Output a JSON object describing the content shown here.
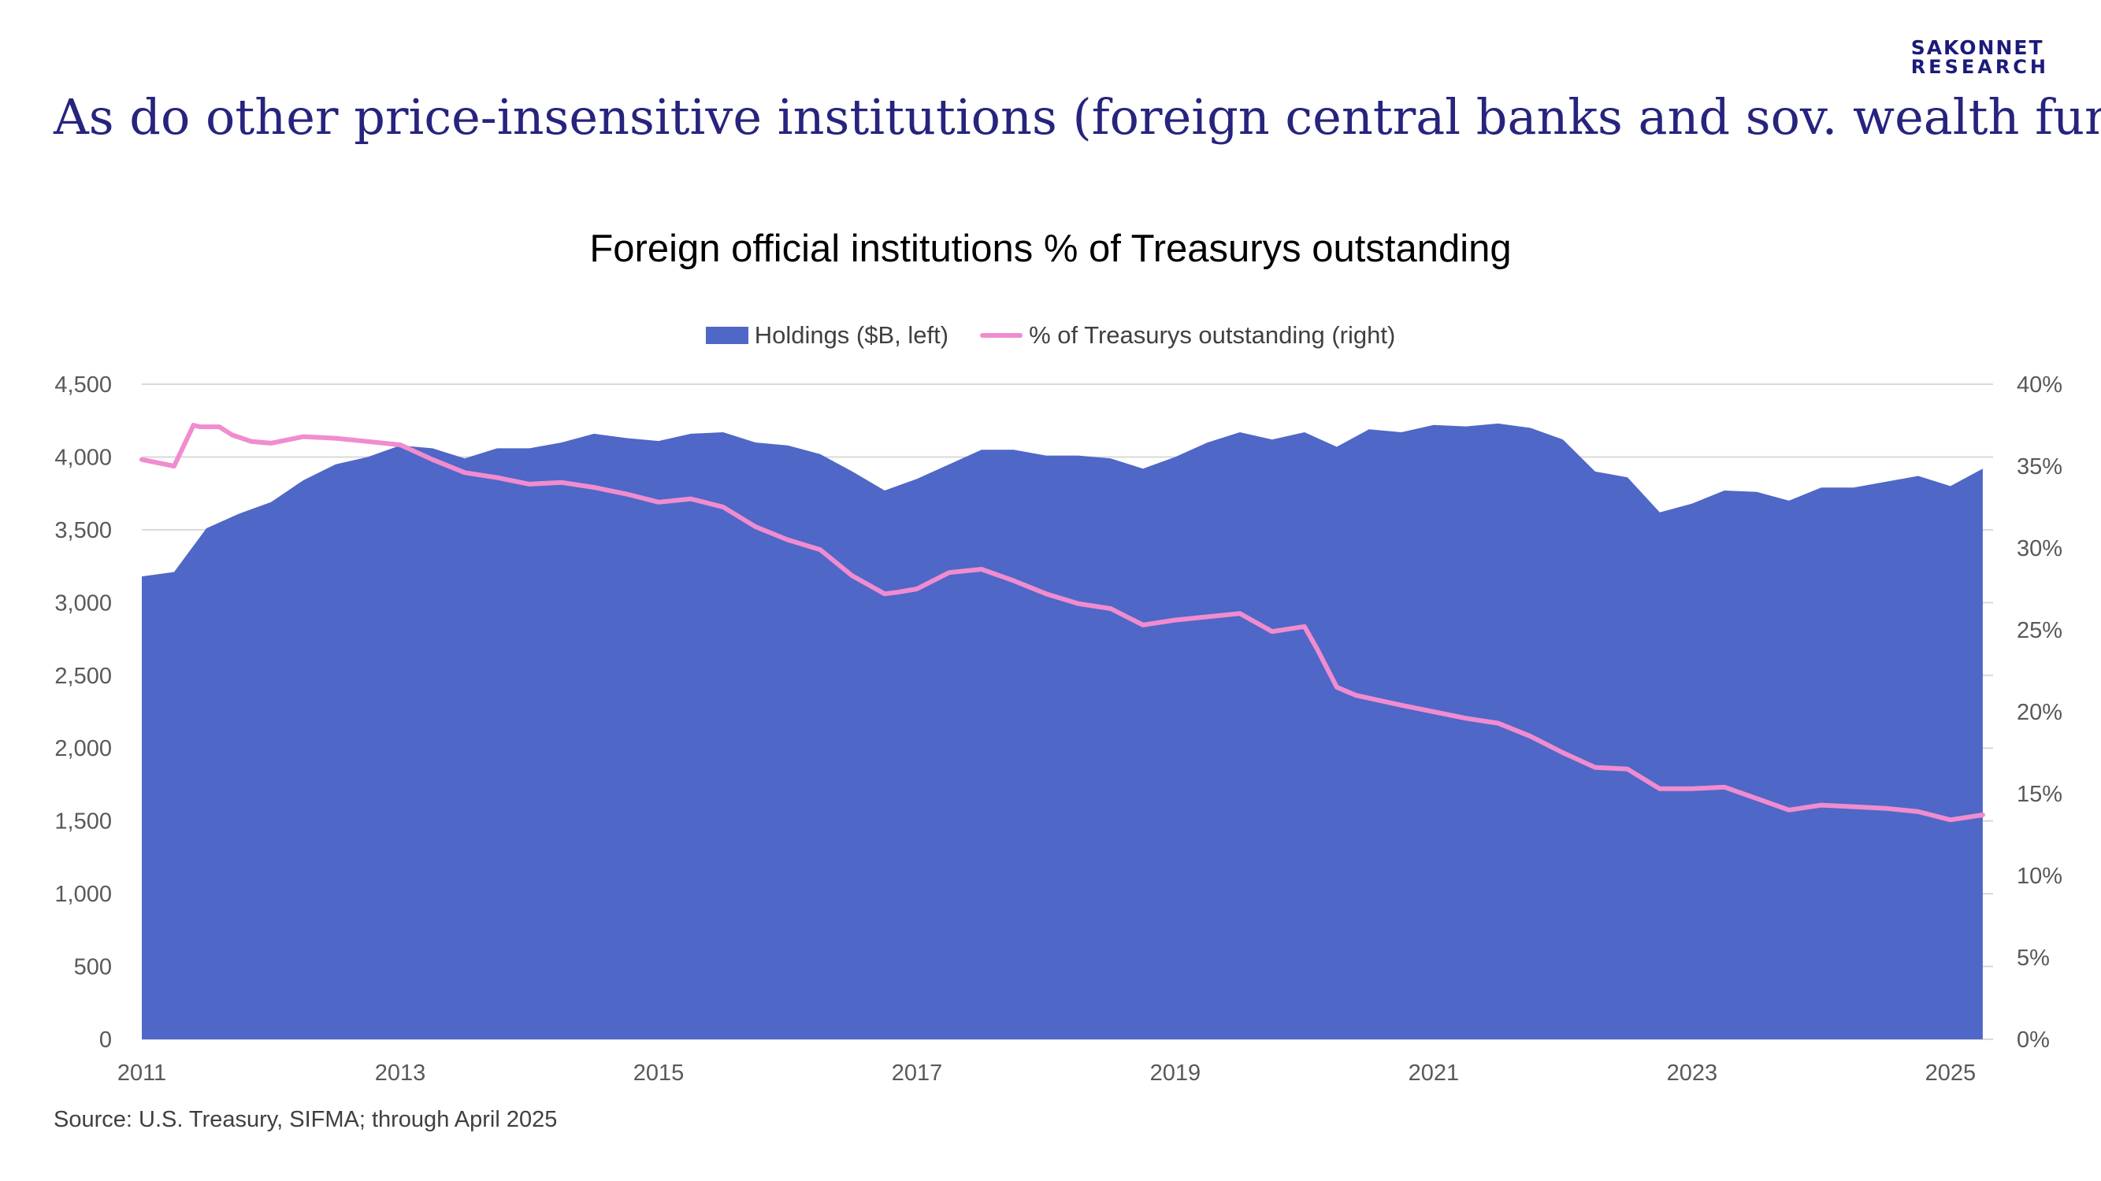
{
  "brand": {
    "line1": "SAKONNET",
    "line2": "RESEARCH"
  },
  "headline": "As do other price-insensitive institutions (foreign central banks and sov. wealth funds)",
  "source": "Source: U.S. Treasury, SIFMA; through April 2025",
  "colors": {
    "area": "#4f67c6",
    "line": "#f08ccf",
    "grid": "#d9d9d9",
    "headline": "#26247d"
  },
  "chart_data": {
    "type": "area",
    "title": "Foreign official institutions % of Treasurys outstanding",
    "legend_position": "top",
    "grid": true,
    "x_ticks": [
      "2011",
      "2013",
      "2015",
      "2017",
      "2019",
      "2021",
      "2023",
      "2025"
    ],
    "y_left": {
      "ticks": [
        "0",
        "500",
        "1,000",
        "1,500",
        "2,000",
        "2,500",
        "3,000",
        "3,500",
        "4,000",
        "4,500"
      ],
      "range": [
        0,
        4500
      ]
    },
    "y_right": {
      "ticks": [
        "0%",
        "5%",
        "10%",
        "15%",
        "20%",
        "25%",
        "30%",
        "35%",
        "40%"
      ],
      "range": [
        0,
        40
      ]
    },
    "series": [
      {
        "name": "Holdings ($B, left)",
        "type": "area",
        "axis": "left",
        "x": [
          2011.0,
          2011.25,
          2011.5,
          2011.75,
          2012.0,
          2012.25,
          2012.5,
          2012.75,
          2013.0,
          2013.25,
          2013.5,
          2013.75,
          2014.0,
          2014.25,
          2014.5,
          2014.75,
          2015.0,
          2015.25,
          2015.5,
          2015.75,
          2016.0,
          2016.25,
          2016.5,
          2016.75,
          2017.0,
          2017.25,
          2017.5,
          2017.75,
          2018.0,
          2018.25,
          2018.5,
          2018.75,
          2019.0,
          2019.25,
          2019.5,
          2019.75,
          2020.0,
          2020.25,
          2020.5,
          2020.75,
          2021.0,
          2021.25,
          2021.5,
          2021.75,
          2022.0,
          2022.25,
          2022.5,
          2022.75,
          2023.0,
          2023.25,
          2023.5,
          2023.75,
          2024.0,
          2024.25,
          2024.5,
          2024.75,
          2025.0,
          2025.25
        ],
        "values": [
          3180,
          3210,
          3510,
          3610,
          3690,
          3840,
          3950,
          4000,
          4080,
          4060,
          3990,
          4060,
          4060,
          4100,
          4160,
          4130,
          4110,
          4160,
          4170,
          4100,
          4080,
          4020,
          3900,
          3770,
          3850,
          3950,
          4050,
          4050,
          4010,
          4010,
          3990,
          3920,
          4000,
          4100,
          4170,
          4120,
          4170,
          4070,
          4190,
          4170,
          4220,
          4210,
          4230,
          4200,
          4120,
          3900,
          3860,
          3620,
          3680,
          3770,
          3760,
          3700,
          3790,
          3790,
          3830,
          3870,
          3800,
          3920
        ]
      },
      {
        "name": "% of Treasurys outstanding (right)",
        "type": "line",
        "axis": "right",
        "x": [
          2011.0,
          2011.25,
          2011.4,
          2011.45,
          2011.6,
          2011.7,
          2011.85,
          2012.0,
          2012.25,
          2012.5,
          2012.75,
          2013.0,
          2013.25,
          2013.5,
          2013.75,
          2014.0,
          2014.25,
          2014.5,
          2014.75,
          2015.0,
          2015.25,
          2015.5,
          2015.75,
          2016.0,
          2016.25,
          2016.5,
          2016.75,
          2016.85,
          2017.0,
          2017.25,
          2017.5,
          2017.75,
          2018.0,
          2018.25,
          2018.5,
          2018.75,
          2019.0,
          2019.25,
          2019.5,
          2019.75,
          2020.0,
          2020.1,
          2020.25,
          2020.4,
          2020.75,
          2021.0,
          2021.25,
          2021.5,
          2021.75,
          2022.0,
          2022.25,
          2022.5,
          2022.75,
          2023.0,
          2023.25,
          2023.5,
          2023.75,
          2024.0,
          2024.25,
          2024.5,
          2024.75,
          2025.0,
          2025.25
        ],
        "values": [
          35.4,
          35.0,
          37.5,
          37.4,
          37.4,
          36.9,
          36.5,
          36.4,
          36.8,
          36.7,
          36.5,
          36.3,
          35.4,
          34.6,
          34.3,
          33.9,
          34.0,
          33.7,
          33.3,
          32.8,
          33.0,
          32.5,
          31.3,
          30.5,
          29.9,
          28.3,
          27.2,
          27.3,
          27.5,
          28.5,
          28.7,
          28.0,
          27.2,
          26.6,
          26.3,
          25.3,
          25.6,
          25.8,
          26.0,
          24.9,
          25.2,
          23.8,
          21.5,
          21.0,
          20.4,
          20.0,
          19.6,
          19.3,
          18.5,
          17.5,
          16.6,
          16.5,
          15.3,
          15.3,
          15.4,
          14.7,
          14.0,
          14.3,
          14.2,
          14.1,
          13.9,
          13.4,
          13.7
        ]
      }
    ]
  }
}
